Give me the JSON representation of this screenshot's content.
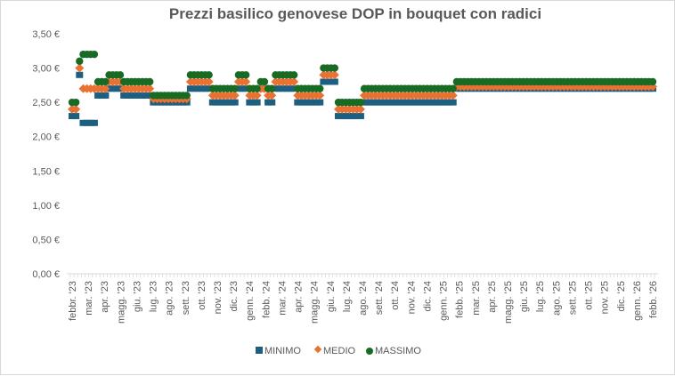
{
  "chart_data": {
    "type": "scatter",
    "title": "Prezzi basilico genovese DOP in bouquet con radici",
    "xlabel": "",
    "ylabel": "",
    "ylim": [
      0,
      3.5
    ],
    "y_ticks": [
      "0,00 €",
      "0,50 €",
      "1,00 €",
      "1,50 €",
      "2,00 €",
      "2,50 €",
      "3,00 €",
      "3,50 €"
    ],
    "x_frequency": "weekly",
    "x_ticks": [
      "febbr. '23",
      "mar. '23",
      "apr. '23",
      "magg. '23",
      "giu. '23",
      "lug. '23",
      "ago. '23",
      "sett. '23",
      "ott. '23",
      "nov. '23",
      "dic. '23",
      "genn. '24",
      "febb. '24",
      "mar. '24",
      "apr. '24",
      "magg. '24",
      "giu. '24",
      "lug. '24",
      "ago. '24",
      "sett. '24",
      "ott. '24",
      "nov. '24",
      "dic. '24",
      "genn. '25",
      "febb. '25",
      "mar. '25",
      "apr. '25",
      "magg. '25",
      "giu. '25",
      "lug. '25",
      "ago. '25",
      "sett. '25",
      "ott. '25",
      "nov. '25",
      "dic. '25",
      "genn. '26",
      "febb. '26"
    ],
    "grid": false,
    "legend_position": "bottom",
    "series": [
      {
        "name": "MINIMO",
        "marker": "square",
        "color": "#1d5f80"
      },
      {
        "name": "MEDIO",
        "marker": "diamond",
        "color": "#e97132"
      },
      {
        "name": "MASSIMO",
        "marker": "circle",
        "color": "#196b24"
      }
    ],
    "segments": [
      {
        "weeks": 2,
        "min": 2.3,
        "medio": 2.4,
        "max": 2.5
      },
      {
        "weeks": 1,
        "min": 2.9,
        "medio": 3.0,
        "max": 3.1
      },
      {
        "weeks": 4,
        "min": 2.2,
        "medio": 2.7,
        "max": 3.2
      },
      {
        "weeks": 3,
        "min": 2.6,
        "medio": 2.7,
        "max": 2.8
      },
      {
        "weeks": 4,
        "min": 2.7,
        "medio": 2.8,
        "max": 2.9
      },
      {
        "weeks": 8,
        "min": 2.6,
        "medio": 2.7,
        "max": 2.8
      },
      {
        "weeks": 10,
        "min": 2.5,
        "medio": 2.55,
        "max": 2.6
      },
      {
        "weeks": 6,
        "min": 2.7,
        "medio": 2.8,
        "max": 2.9
      },
      {
        "weeks": 7,
        "min": 2.5,
        "medio": 2.6,
        "max": 2.7
      },
      {
        "weeks": 3,
        "min": 2.7,
        "medio": 2.8,
        "max": 2.9
      },
      {
        "weeks": 3,
        "min": 2.5,
        "medio": 2.6,
        "max": 2.7
      },
      {
        "weeks": 2,
        "min": 2.7,
        "medio": 2.7,
        "max": 2.8
      },
      {
        "weeks": 2,
        "min": 2.5,
        "medio": 2.6,
        "max": 2.7
      },
      {
        "weeks": 6,
        "min": 2.7,
        "medio": 2.8,
        "max": 2.9
      },
      {
        "weeks": 7,
        "min": 2.5,
        "medio": 2.6,
        "max": 2.7
      },
      {
        "weeks": 4,
        "min": 2.8,
        "medio": 2.9,
        "max": 3.0
      },
      {
        "weeks": 7,
        "min": 2.3,
        "medio": 2.4,
        "max": 2.5
      },
      {
        "weeks": 25,
        "min": 2.5,
        "medio": 2.6,
        "max": 2.7
      },
      {
        "weeks": 54,
        "min": 2.7,
        "medio": 2.73,
        "max": 2.8
      }
    ]
  }
}
